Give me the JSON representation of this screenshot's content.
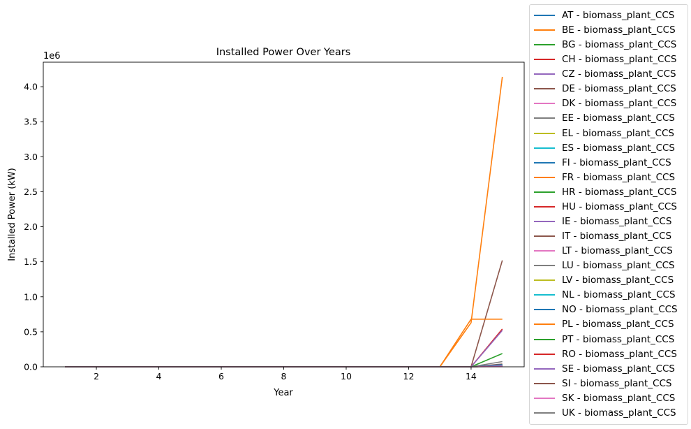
{
  "chart_data": {
    "type": "line",
    "title": "Installed Power Over Years",
    "xlabel": "Year",
    "ylabel": "Installed Power (kW)",
    "y_multiplier_label": "1e6",
    "xlim": [
      0.3,
      15.7
    ],
    "ylim": [
      0,
      4350000
    ],
    "x_ticks": [
      2,
      4,
      6,
      8,
      10,
      12,
      14
    ],
    "y_ticks": [
      0,
      500000,
      1000000,
      1500000,
      2000000,
      2500000,
      3000000,
      3500000,
      4000000
    ],
    "y_tick_labels": [
      "0.0",
      "0.5",
      "1.0",
      "1.5",
      "2.0",
      "2.5",
      "3.0",
      "3.5",
      "4.0"
    ],
    "legend_position": "outside-right",
    "grid": false,
    "x": [
      1,
      2,
      3,
      4,
      5,
      6,
      7,
      8,
      9,
      10,
      11,
      12,
      13,
      14,
      15
    ],
    "series": [
      {
        "name": "AT - biomass_plant_CCS",
        "color": "#1f77b4",
        "values": [
          0,
          0,
          0,
          0,
          0,
          0,
          0,
          0,
          0,
          0,
          0,
          0,
          0,
          0,
          20000
        ]
      },
      {
        "name": "BE - biomass_plant_CCS",
        "color": "#ff7f0e",
        "values": [
          0,
          0,
          0,
          0,
          0,
          0,
          0,
          0,
          0,
          0,
          0,
          0,
          0,
          0,
          30000
        ]
      },
      {
        "name": "BG - biomass_plant_CCS",
        "color": "#2ca02c",
        "values": [
          0,
          0,
          0,
          0,
          0,
          0,
          0,
          0,
          0,
          0,
          0,
          0,
          0,
          0,
          15000
        ]
      },
      {
        "name": "CH - biomass_plant_CCS",
        "color": "#d62728",
        "values": [
          0,
          0,
          0,
          0,
          0,
          0,
          0,
          0,
          0,
          0,
          0,
          0,
          0,
          0,
          25000
        ]
      },
      {
        "name": "CZ - biomass_plant_CCS",
        "color": "#9467bd",
        "values": [
          0,
          0,
          0,
          0,
          0,
          0,
          0,
          0,
          0,
          0,
          0,
          0,
          0,
          0,
          20000
        ]
      },
      {
        "name": "DE - biomass_plant_CCS",
        "color": "#8c564b",
        "values": [
          0,
          0,
          0,
          0,
          0,
          0,
          0,
          0,
          0,
          0,
          0,
          0,
          0,
          0,
          40000
        ]
      },
      {
        "name": "DK - biomass_plant_CCS",
        "color": "#e377c2",
        "values": [
          0,
          0,
          0,
          0,
          0,
          0,
          0,
          0,
          0,
          0,
          0,
          0,
          0,
          0,
          20000
        ]
      },
      {
        "name": "EE - biomass_plant_CCS",
        "color": "#7f7f7f",
        "values": [
          0,
          0,
          0,
          0,
          0,
          0,
          0,
          0,
          0,
          0,
          0,
          0,
          0,
          0,
          10000
        ]
      },
      {
        "name": "EL - biomass_plant_CCS",
        "color": "#bcbd22",
        "values": [
          0,
          0,
          0,
          0,
          0,
          0,
          0,
          0,
          0,
          0,
          0,
          0,
          0,
          0,
          10000
        ]
      },
      {
        "name": "ES - biomass_plant_CCS",
        "color": "#17becf",
        "values": [
          0,
          0,
          0,
          0,
          0,
          0,
          0,
          0,
          0,
          0,
          0,
          0,
          0,
          0,
          20000
        ]
      },
      {
        "name": "FI - biomass_plant_CCS",
        "color": "#1f77b4",
        "values": [
          0,
          0,
          0,
          0,
          0,
          0,
          0,
          0,
          0,
          0,
          0,
          0,
          0,
          0,
          30000
        ]
      },
      {
        "name": "FR - biomass_plant_CCS",
        "color": "#ff7f0e",
        "values": [
          0,
          0,
          0,
          0,
          0,
          0,
          0,
          0,
          0,
          0,
          0,
          0,
          0,
          630000,
          4140000
        ]
      },
      {
        "name": "HR - biomass_plant_CCS",
        "color": "#2ca02c",
        "values": [
          0,
          0,
          0,
          0,
          0,
          0,
          0,
          0,
          0,
          0,
          0,
          0,
          0,
          0,
          10000
        ]
      },
      {
        "name": "HU - biomass_plant_CCS",
        "color": "#d62728",
        "values": [
          0,
          0,
          0,
          0,
          0,
          0,
          0,
          0,
          0,
          0,
          0,
          0,
          0,
          0,
          20000
        ]
      },
      {
        "name": "IE - biomass_plant_CCS",
        "color": "#9467bd",
        "values": [
          0,
          0,
          0,
          0,
          0,
          0,
          0,
          0,
          0,
          0,
          0,
          0,
          0,
          0,
          10000
        ]
      },
      {
        "name": "IT - biomass_plant_CCS",
        "color": "#8c564b",
        "values": [
          0,
          0,
          0,
          0,
          0,
          0,
          0,
          0,
          0,
          0,
          0,
          0,
          0,
          0,
          1520000
        ]
      },
      {
        "name": "LT - biomass_plant_CCS",
        "color": "#e377c2",
        "values": [
          0,
          0,
          0,
          0,
          0,
          0,
          0,
          0,
          0,
          0,
          0,
          0,
          0,
          0,
          10000
        ]
      },
      {
        "name": "LU - biomass_plant_CCS",
        "color": "#7f7f7f",
        "values": [
          0,
          0,
          0,
          0,
          0,
          0,
          0,
          0,
          0,
          0,
          0,
          0,
          0,
          0,
          5000
        ]
      },
      {
        "name": "LV - biomass_plant_CCS",
        "color": "#bcbd22",
        "values": [
          0,
          0,
          0,
          0,
          0,
          0,
          0,
          0,
          0,
          0,
          0,
          0,
          0,
          0,
          10000
        ]
      },
      {
        "name": "NL - biomass_plant_CCS",
        "color": "#17becf",
        "values": [
          0,
          0,
          0,
          0,
          0,
          0,
          0,
          0,
          0,
          0,
          0,
          0,
          0,
          0,
          20000
        ]
      },
      {
        "name": "NO - biomass_plant_CCS",
        "color": "#1f77b4",
        "values": [
          0,
          0,
          0,
          0,
          0,
          0,
          0,
          0,
          0,
          0,
          0,
          0,
          0,
          0,
          20000
        ]
      },
      {
        "name": "PL - biomass_plant_CCS",
        "color": "#ff7f0e",
        "values": [
          0,
          0,
          0,
          0,
          0,
          0,
          0,
          0,
          0,
          0,
          0,
          0,
          0,
          680000,
          680000
        ]
      },
      {
        "name": "PT - biomass_plant_CCS",
        "color": "#2ca02c",
        "values": [
          0,
          0,
          0,
          0,
          0,
          0,
          0,
          0,
          0,
          0,
          0,
          0,
          0,
          0,
          190000
        ]
      },
      {
        "name": "RO - biomass_plant_CCS",
        "color": "#d62728",
        "values": [
          0,
          0,
          0,
          0,
          0,
          0,
          0,
          0,
          0,
          0,
          0,
          0,
          0,
          0,
          540000
        ]
      },
      {
        "name": "SE - biomass_plant_CCS",
        "color": "#9467bd",
        "values": [
          0,
          0,
          0,
          0,
          0,
          0,
          0,
          0,
          0,
          0,
          0,
          0,
          0,
          0,
          520000
        ]
      },
      {
        "name": "SI - biomass_plant_CCS",
        "color": "#8c564b",
        "values": [
          0,
          0,
          0,
          0,
          0,
          0,
          0,
          0,
          0,
          0,
          0,
          0,
          0,
          0,
          10000
        ]
      },
      {
        "name": "SK - biomass_plant_CCS",
        "color": "#e377c2",
        "values": [
          0,
          0,
          0,
          0,
          0,
          0,
          0,
          0,
          0,
          0,
          0,
          0,
          0,
          0,
          10000
        ]
      },
      {
        "name": "UK - biomass_plant_CCS",
        "color": "#7f7f7f",
        "values": [
          0,
          0,
          0,
          0,
          0,
          0,
          0,
          0,
          0,
          0,
          0,
          0,
          0,
          0,
          75000
        ]
      }
    ]
  }
}
